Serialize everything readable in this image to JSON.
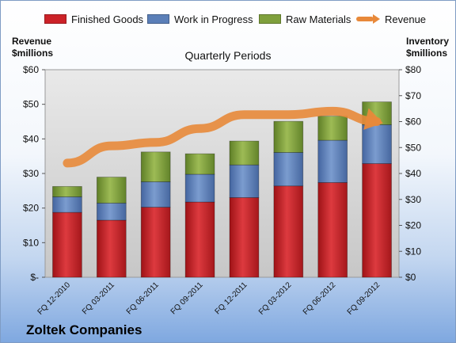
{
  "legend": {
    "finished": "Finished Goods",
    "wip": "Work in Progress",
    "raw": "Raw Materials",
    "revenue": "Revenue"
  },
  "left_axis_title": [
    "Revenue",
    "$millions"
  ],
  "right_axis_title": [
    "Inventory",
    "$millions"
  ],
  "subtitle": "Quarterly Periods",
  "company": "Zoltek Companies",
  "colors": {
    "finished": "#cc2228",
    "wip": "#5b7fb8",
    "raw": "#7fa03c",
    "revenue": "#e8893a"
  },
  "chart_data": {
    "type": "bar",
    "stacked": true,
    "categories": [
      "FQ 12-2010",
      "FQ 03-2011",
      "FQ 06-2011",
      "FQ 09-2011",
      "FQ 12-2011",
      "FQ 03-2012",
      "FQ 06-2012",
      "FQ 09-2012"
    ],
    "series": [
      {
        "name": "Finished Goods",
        "axis": "right",
        "values": [
          25,
          22,
          27,
          29,
          30.7,
          35.2,
          36.5,
          43.8
        ]
      },
      {
        "name": "Work in Progress",
        "axis": "right",
        "values": [
          6,
          6.6,
          9.8,
          10.7,
          12.6,
          12.9,
          16.3,
          15
        ]
      },
      {
        "name": "Raw Materials",
        "axis": "right",
        "values": [
          4,
          10,
          11.5,
          7.9,
          9.2,
          12,
          9.3,
          8.8
        ]
      },
      {
        "name": "Revenue",
        "axis": "left",
        "type": "line",
        "values": [
          33,
          38,
          39,
          43,
          47,
          47,
          48,
          45
        ]
      }
    ],
    "y_left": {
      "ticks": [
        "$-",
        "$10",
        "$20",
        "$30",
        "$40",
        "$50",
        "$60"
      ],
      "ylim": [
        0,
        60
      ]
    },
    "y_right": {
      "ticks": [
        "$0",
        "$10",
        "$20",
        "$30",
        "$40",
        "$50",
        "$60",
        "$70",
        "$80"
      ],
      "ylim": [
        0,
        80
      ]
    },
    "grid": false
  }
}
